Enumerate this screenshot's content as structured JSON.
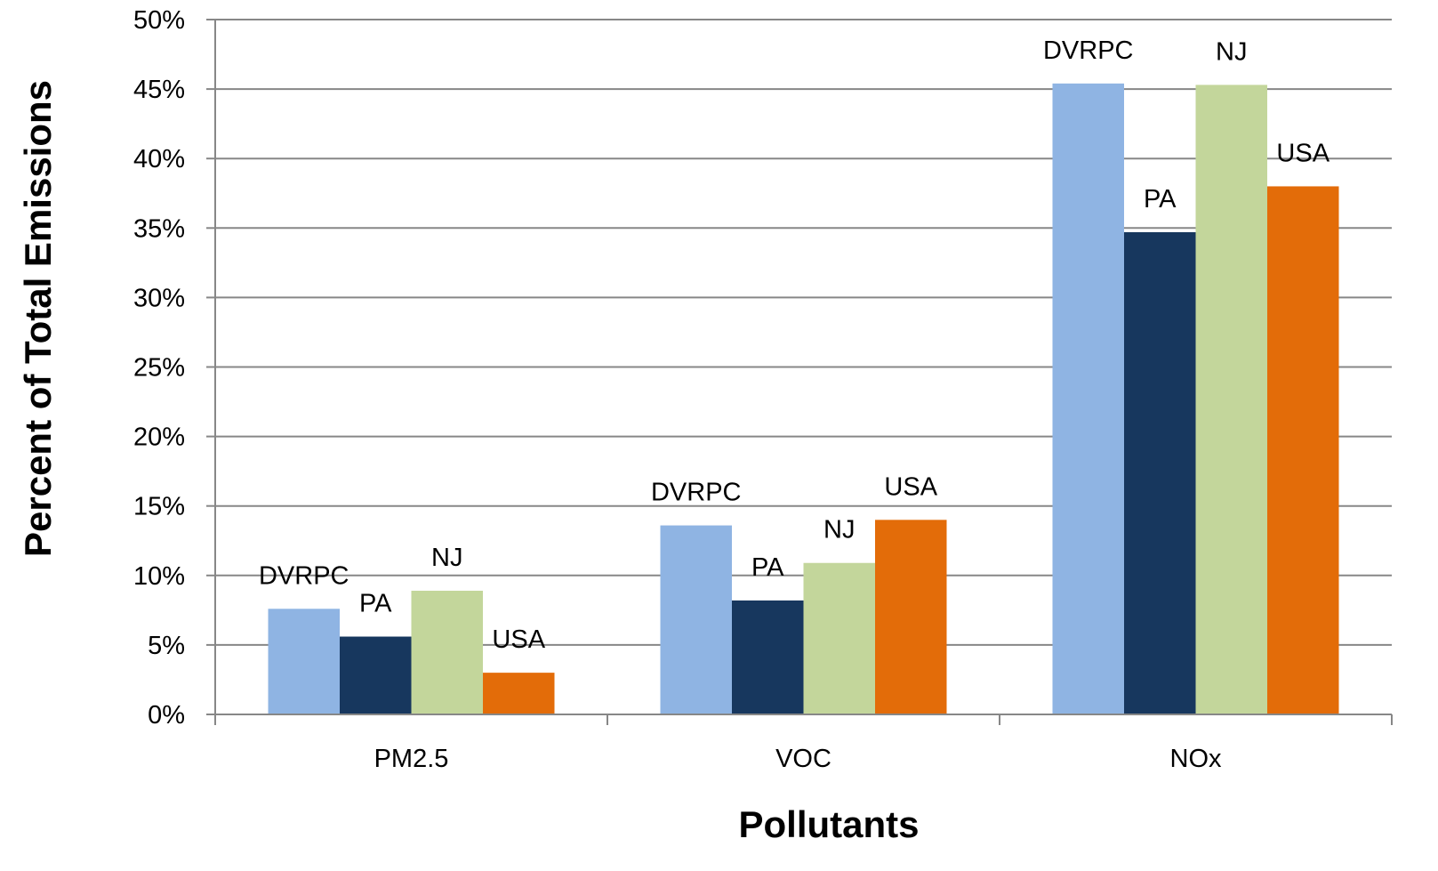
{
  "chart_data": {
    "type": "bar",
    "title": "",
    "xlabel": "Pollutants",
    "ylabel": "Percent of Total Emissions",
    "categories": [
      "PM2.5",
      "VOC",
      "NOx"
    ],
    "series": [
      {
        "name": "DVRPC",
        "color": "#8FB4E3",
        "values": [
          7.6,
          13.6,
          45.4
        ]
      },
      {
        "name": "PA",
        "color": "#17375E",
        "values": [
          5.6,
          8.2,
          34.7
        ]
      },
      {
        "name": "NJ",
        "color": "#C3D69B",
        "values": [
          8.9,
          10.9,
          45.3
        ]
      },
      {
        "name": "USA",
        "color": "#E36C09",
        "values": [
          3.0,
          14.0,
          38.0
        ]
      }
    ],
    "ylim": [
      0,
      50
    ],
    "ytick_step": 5,
    "ytick_labels": [
      "0%",
      "5%",
      "10%",
      "15%",
      "20%",
      "25%",
      "30%",
      "35%",
      "40%",
      "45%",
      "50%"
    ],
    "grid": true,
    "legend": "none",
    "data_labels": "series name above each bar"
  }
}
